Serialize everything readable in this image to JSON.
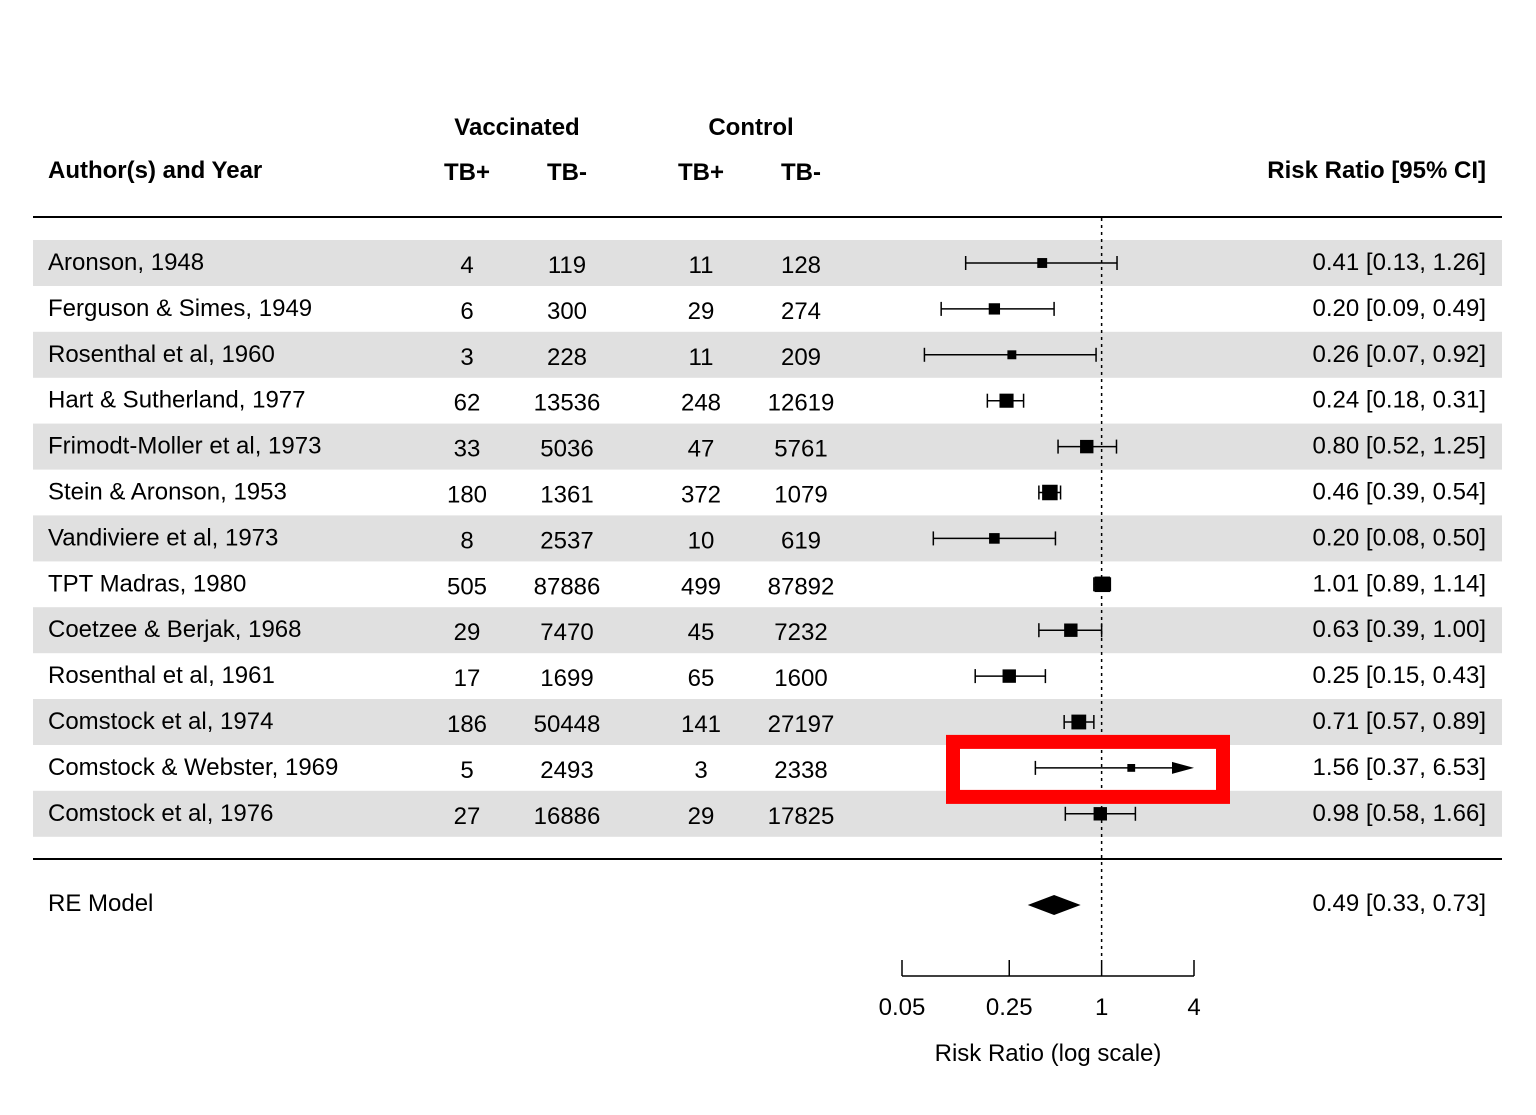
{
  "chart_data": {
    "type": "forest",
    "headers": {
      "group_vaccinated": "Vaccinated",
      "group_control": "Control",
      "study": "Author(s) and Year",
      "tpos": "TB+",
      "tneg": "TB-",
      "ctpos": "TB+",
      "ctneg": "TB-",
      "effect": "Risk Ratio [95% CI]"
    },
    "studies": [
      {
        "label": "Aronson, 1948",
        "tpos": "4",
        "tneg": "119",
        "cpos": "11",
        "cneg": "128",
        "rr": 0.41,
        "lo": 0.13,
        "hi": 1.26,
        "ci_text": "0.41 [0.13, 1.26]",
        "weight": 0.35
      },
      {
        "label": "Ferguson & Simes, 1949",
        "tpos": "6",
        "tneg": "300",
        "cpos": "29",
        "cneg": "274",
        "rr": 0.2,
        "lo": 0.09,
        "hi": 0.49,
        "ci_text": "0.20 [0.09, 0.49]",
        "weight": 0.45
      },
      {
        "label": "Rosenthal et al, 1960",
        "tpos": "3",
        "tneg": "228",
        "cpos": "11",
        "cneg": "209",
        "rr": 0.26,
        "lo": 0.07,
        "hi": 0.92,
        "ci_text": "0.26 [0.07, 0.92]",
        "weight": 0.28
      },
      {
        "label": "Hart & Sutherland, 1977",
        "tpos": "62",
        "tneg": "13536",
        "cpos": "248",
        "cneg": "12619",
        "rr": 0.24,
        "lo": 0.18,
        "hi": 0.31,
        "ci_text": "0.24 [0.18, 0.31]",
        "weight": 0.65
      },
      {
        "label": "Frimodt-Moller et al, 1973",
        "tpos": "33",
        "tneg": "5036",
        "cpos": "47",
        "cneg": "5761",
        "rr": 0.8,
        "lo": 0.52,
        "hi": 1.25,
        "ci_text": "0.80 [0.52, 1.25]",
        "weight": 0.6
      },
      {
        "label": "Stein & Aronson, 1953",
        "tpos": "180",
        "tneg": "1361",
        "cpos": "372",
        "cneg": "1079",
        "rr": 0.46,
        "lo": 0.39,
        "hi": 0.54,
        "ci_text": "0.46 [0.39, 0.54]",
        "weight": 0.75
      },
      {
        "label": "Vandiviere et al, 1973",
        "tpos": "8",
        "tneg": "2537",
        "cpos": "10",
        "cneg": "619",
        "rr": 0.2,
        "lo": 0.08,
        "hi": 0.5,
        "ci_text": "0.20 [0.08, 0.50]",
        "weight": 0.4
      },
      {
        "label": "TPT Madras, 1980",
        "tpos": "505",
        "tneg": "87886",
        "cpos": "499",
        "cneg": "87892",
        "rr": 1.01,
        "lo": 0.89,
        "hi": 1.14,
        "ci_text": "1.01 [0.89, 1.14]",
        "weight": 0.75
      },
      {
        "label": "Coetzee & Berjak, 1968",
        "tpos": "29",
        "tneg": "7470",
        "cpos": "45",
        "cneg": "7232",
        "rr": 0.63,
        "lo": 0.39,
        "hi": 1.0,
        "ci_text": "0.63 [0.39, 1.00]",
        "weight": 0.6
      },
      {
        "label": "Rosenthal et al, 1961",
        "tpos": "17",
        "tneg": "1699",
        "cpos": "65",
        "cneg": "1600",
        "rr": 0.25,
        "lo": 0.15,
        "hi": 0.43,
        "ci_text": "0.25 [0.15, 0.43]",
        "weight": 0.6
      },
      {
        "label": "Comstock et al, 1974",
        "tpos": "186",
        "tneg": "50448",
        "cpos": "141",
        "cneg": "27197",
        "rr": 0.71,
        "lo": 0.57,
        "hi": 0.89,
        "ci_text": "0.71 [0.57, 0.89]",
        "weight": 0.7
      },
      {
        "label": "Comstock & Webster, 1969",
        "tpos": "5",
        "tneg": "2493",
        "cpos": "3",
        "cneg": "2338",
        "rr": 1.56,
        "lo": 0.37,
        "hi": 6.53,
        "ci_text": "1.56 [0.37, 6.53]",
        "weight": 0.2,
        "highlighted": true,
        "truncated_upper": true
      },
      {
        "label": "Comstock et al, 1976",
        "tpos": "27",
        "tneg": "16886",
        "cpos": "29",
        "cneg": "17825",
        "rr": 0.98,
        "lo": 0.58,
        "hi": 1.66,
        "ci_text": "0.98 [0.58, 1.66]",
        "weight": 0.6
      }
    ],
    "summary": {
      "label": "RE Model",
      "rr": 0.49,
      "lo": 0.33,
      "hi": 0.73,
      "ci_text": "0.49 [0.33, 0.73]"
    },
    "axis": {
      "scale": "log",
      "xlim": [
        0.05,
        4
      ],
      "ticks": [
        0.05,
        0.25,
        1,
        4
      ],
      "tick_labels": [
        "0.05",
        "0.25",
        "1",
        "4"
      ],
      "xlabel": "Risk Ratio (log scale)",
      "reference_line": 1
    },
    "colors": {
      "stripe": "#e0e0e0",
      "highlight": "#ff0000",
      "ink": "#000000"
    }
  }
}
